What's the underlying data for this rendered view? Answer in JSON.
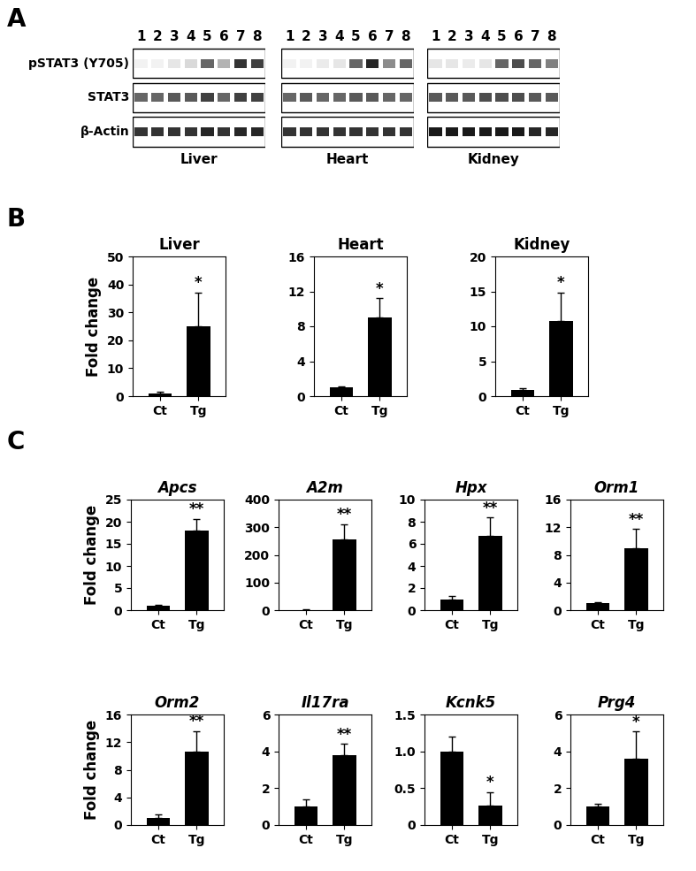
{
  "panel_labels": [
    "A",
    "B",
    "C"
  ],
  "blot": {
    "lanes": [
      "1",
      "2",
      "3",
      "4",
      "5",
      "6",
      "7",
      "8"
    ],
    "row_labels": [
      "pSTAT3 (Y705)",
      "STAT3",
      "β-Actin"
    ],
    "tissues": [
      {
        "name": "Liver",
        "intensity": [
          [
            0.05,
            0.05,
            0.1,
            0.15,
            0.6,
            0.3,
            0.8,
            0.75
          ],
          [
            0.6,
            0.6,
            0.65,
            0.65,
            0.75,
            0.6,
            0.75,
            0.75
          ],
          [
            0.8,
            0.8,
            0.8,
            0.8,
            0.85,
            0.8,
            0.85,
            0.85
          ]
        ]
      },
      {
        "name": "Heart",
        "intensity": [
          [
            0.05,
            0.05,
            0.08,
            0.1,
            0.6,
            0.85,
            0.45,
            0.6
          ],
          [
            0.6,
            0.65,
            0.6,
            0.6,
            0.65,
            0.65,
            0.6,
            0.6
          ],
          [
            0.8,
            0.8,
            0.8,
            0.8,
            0.8,
            0.8,
            0.8,
            0.8
          ]
        ]
      },
      {
        "name": "Kidney",
        "intensity": [
          [
            0.1,
            0.1,
            0.08,
            0.1,
            0.6,
            0.7,
            0.6,
            0.5
          ],
          [
            0.65,
            0.65,
            0.65,
            0.7,
            0.7,
            0.7,
            0.65,
            0.65
          ],
          [
            0.9,
            0.9,
            0.9,
            0.9,
            0.9,
            0.9,
            0.85,
            0.85
          ]
        ]
      }
    ]
  },
  "chart_data": [
    {
      "type": "bar",
      "title": "Liver",
      "y_label": "Fold change",
      "categories": [
        "Ct",
        "Tg"
      ],
      "values": [
        1,
        25
      ],
      "errors": [
        0.5,
        12
      ],
      "color": "#000000",
      "ylim": [
        0,
        50
      ],
      "yticks": [
        0,
        10,
        20,
        30,
        40,
        50
      ],
      "annotation": "*"
    },
    {
      "type": "bar",
      "title": "Heart",
      "categories": [
        "Ct",
        "Tg"
      ],
      "values": [
        1,
        9
      ],
      "errors": [
        0.1,
        2.2
      ],
      "color": "#000000",
      "ylim": [
        0,
        16
      ],
      "yticks": [
        0,
        4,
        8,
        12,
        16
      ],
      "annotation": "*"
    },
    {
      "type": "bar",
      "title": "Kidney",
      "categories": [
        "Ct",
        "Tg"
      ],
      "values": [
        0.9,
        10.8
      ],
      "errors": [
        0.3,
        4
      ],
      "color": "#000000",
      "ylim": [
        0,
        20
      ],
      "yticks": [
        0,
        5,
        10,
        15,
        20
      ],
      "annotation": "*"
    },
    {
      "type": "bar",
      "title": "Apcs",
      "y_label": "Fold change",
      "categories": [
        "Ct",
        "Tg"
      ],
      "values": [
        1,
        18
      ],
      "errors": [
        0.3,
        2.7
      ],
      "color": "#000000",
      "ylim": [
        0,
        25
      ],
      "yticks": [
        0,
        5,
        10,
        15,
        20,
        25
      ],
      "annotation": "**"
    },
    {
      "type": "bar",
      "title": "A2m",
      "categories": [
        "Ct",
        "Tg"
      ],
      "values": [
        1,
        257
      ],
      "errors": [
        1,
        55
      ],
      "color": "#000000",
      "ylim": [
        0,
        400
      ],
      "yticks": [
        0,
        100,
        200,
        300,
        400
      ],
      "annotation": "**"
    },
    {
      "type": "bar",
      "title": "Hpx",
      "categories": [
        "Ct",
        "Tg"
      ],
      "values": [
        1,
        6.7
      ],
      "errors": [
        0.3,
        1.7
      ],
      "color": "#000000",
      "ylim": [
        0,
        10
      ],
      "yticks": [
        0,
        2,
        4,
        6,
        8,
        10
      ],
      "annotation": "**"
    },
    {
      "type": "bar",
      "title": "Orm1",
      "categories": [
        "Ct",
        "Tg"
      ],
      "values": [
        1,
        9
      ],
      "errors": [
        0.2,
        2.8
      ],
      "color": "#000000",
      "ylim": [
        0,
        16
      ],
      "yticks": [
        0,
        4,
        8,
        12,
        16
      ],
      "annotation": "**"
    },
    {
      "type": "bar",
      "title": "Orm2",
      "y_label": "Fold change",
      "categories": [
        "Ct",
        "Tg"
      ],
      "values": [
        1,
        10.6
      ],
      "errors": [
        0.6,
        3
      ],
      "color": "#000000",
      "ylim": [
        0,
        16
      ],
      "yticks": [
        0,
        4,
        8,
        12,
        16
      ],
      "annotation": "**"
    },
    {
      "type": "bar",
      "title": "Il17ra",
      "categories": [
        "Ct",
        "Tg"
      ],
      "values": [
        1,
        3.8
      ],
      "errors": [
        0.4,
        0.6
      ],
      "color": "#000000",
      "ylim": [
        0,
        6
      ],
      "yticks": [
        0,
        2,
        4,
        6
      ],
      "annotation": "**"
    },
    {
      "type": "bar",
      "title": "Kcnk5",
      "categories": [
        "Ct",
        "Tg"
      ],
      "values": [
        1,
        0.27
      ],
      "errors": [
        0.2,
        0.18
      ],
      "color": "#000000",
      "ylim": [
        0,
        1.5
      ],
      "yticks": [
        0,
        0.5,
        1.0,
        1.5
      ],
      "annotation": "*"
    },
    {
      "type": "bar",
      "title": "Prg4",
      "categories": [
        "Ct",
        "Tg"
      ],
      "values": [
        1,
        3.6
      ],
      "errors": [
        0.15,
        1.5
      ],
      "color": "#000000",
      "ylim": [
        0,
        6
      ],
      "yticks": [
        0,
        2,
        4,
        6
      ],
      "annotation": "*"
    }
  ]
}
